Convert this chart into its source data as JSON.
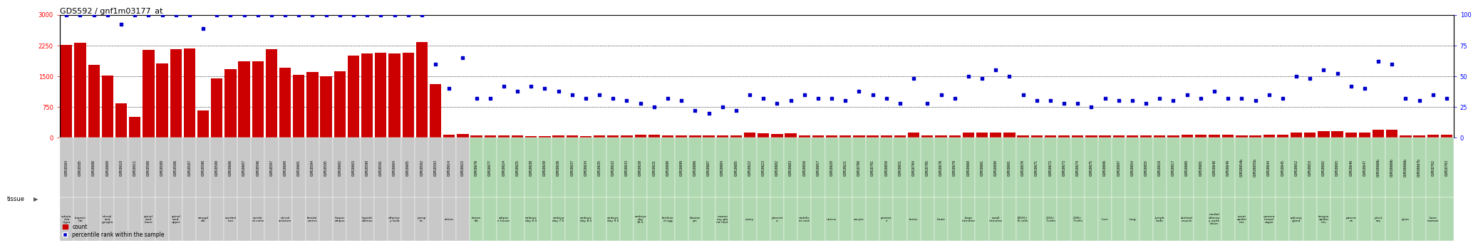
{
  "title": "GDS592 / gnf1m03177_at",
  "y_left_ticks": [
    0,
    750,
    1500,
    2250,
    3000
  ],
  "y_right_ticks": [
    0,
    25,
    50,
    75,
    100
  ],
  "bar_color": "#cc0000",
  "dot_color": "#0000cc",
  "bg_gray": "#c8c8c8",
  "bg_green": "#b0d8b0",
  "samples": [
    {
      "id": "GSM18584",
      "tissue": "substa\nntia\nnigra",
      "count": 2270,
      "pct": 100,
      "bg": "gray"
    },
    {
      "id": "GSM18585",
      "tissue": "trigemi\nnal",
      "count": 2310,
      "pct": 100,
      "bg": "gray"
    },
    {
      "id": "GSM18608",
      "tissue": "",
      "count": 1780,
      "pct": 100,
      "bg": "gray"
    },
    {
      "id": "GSM18609",
      "tissue": "dorsal\nroot\nganglia",
      "count": 1510,
      "pct": 100,
      "bg": "gray"
    },
    {
      "id": "GSM18610",
      "tissue": "",
      "count": 840,
      "pct": 92,
      "bg": "gray"
    },
    {
      "id": "GSM18611",
      "tissue": "",
      "count": 510,
      "pct": 100,
      "bg": "gray"
    },
    {
      "id": "GSM18588",
      "tissue": "spinal\ncord\nlower",
      "count": 2140,
      "pct": 100,
      "bg": "gray"
    },
    {
      "id": "GSM18589",
      "tissue": "",
      "count": 1810,
      "pct": 100,
      "bg": "gray"
    },
    {
      "id": "GSM18586",
      "tissue": "spinal\ncord\nupper",
      "count": 2160,
      "pct": 100,
      "bg": "gray"
    },
    {
      "id": "GSM18587",
      "tissue": "",
      "count": 2175,
      "pct": 100,
      "bg": "gray"
    },
    {
      "id": "GSM18598",
      "tissue": "amygd\nala",
      "count": 660,
      "pct": 89,
      "bg": "gray"
    },
    {
      "id": "GSM18599",
      "tissue": "",
      "count": 1450,
      "pct": 100,
      "bg": "gray"
    },
    {
      "id": "GSM18606",
      "tissue": "cerebel\nlum",
      "count": 1670,
      "pct": 100,
      "bg": "gray"
    },
    {
      "id": "GSM18607",
      "tissue": "",
      "count": 1870,
      "pct": 100,
      "bg": "gray"
    },
    {
      "id": "GSM18596",
      "tissue": "cerebr\nal corte",
      "count": 1870,
      "pct": 100,
      "bg": "gray"
    },
    {
      "id": "GSM18597",
      "tissue": "",
      "count": 2155,
      "pct": 100,
      "bg": "gray"
    },
    {
      "id": "GSM18600",
      "tissue": "dorsal\nstriatum",
      "count": 1700,
      "pct": 100,
      "bg": "gray"
    },
    {
      "id": "GSM18601",
      "tissue": "",
      "count": 1540,
      "pct": 100,
      "bg": "gray"
    },
    {
      "id": "GSM18594",
      "tissue": "frontal\ncortex",
      "count": 1595,
      "pct": 100,
      "bg": "gray"
    },
    {
      "id": "GSM18595",
      "tissue": "",
      "count": 1500,
      "pct": 100,
      "bg": "gray"
    },
    {
      "id": "GSM18602",
      "tissue": "hippoc\nampus",
      "count": 1620,
      "pct": 100,
      "bg": "gray"
    },
    {
      "id": "GSM18603",
      "tissue": "",
      "count": 2000,
      "pct": 100,
      "bg": "gray"
    },
    {
      "id": "GSM18590",
      "tissue": "hypoth\nalamus",
      "count": 2060,
      "pct": 100,
      "bg": "gray"
    },
    {
      "id": "GSM18591",
      "tissue": "",
      "count": 2070,
      "pct": 100,
      "bg": "gray"
    },
    {
      "id": "GSM18604",
      "tissue": "olfactor\ny bulb",
      "count": 2055,
      "pct": 100,
      "bg": "gray"
    },
    {
      "id": "GSM18605",
      "tissue": "",
      "count": 2065,
      "pct": 100,
      "bg": "gray"
    },
    {
      "id": "GSM18592",
      "tissue": "preop\ntic",
      "count": 2340,
      "pct": 100,
      "bg": "gray"
    },
    {
      "id": "GSM18593",
      "tissue": "",
      "count": 1300,
      "pct": 60,
      "bg": "gray"
    },
    {
      "id": "GSM18614",
      "tissue": "retina",
      "count": 80,
      "pct": 40,
      "bg": "gray"
    },
    {
      "id": "GSM18615",
      "tissue": "",
      "count": 90,
      "pct": 65,
      "bg": "gray"
    },
    {
      "id": "GSM18676",
      "tissue": "brown\nfat",
      "count": 60,
      "pct": 32,
      "bg": "green"
    },
    {
      "id": "GSM18677",
      "tissue": "",
      "count": 50,
      "pct": 32,
      "bg": "green"
    },
    {
      "id": "GSM18624",
      "tissue": "adipos\ne tissue",
      "count": 55,
      "pct": 42,
      "bg": "green"
    },
    {
      "id": "GSM18625",
      "tissue": "",
      "count": 60,
      "pct": 38,
      "bg": "green"
    },
    {
      "id": "GSM18638",
      "tissue": "embryo\nday 6.5",
      "count": 40,
      "pct": 42,
      "bg": "green"
    },
    {
      "id": "GSM18639",
      "tissue": "",
      "count": 40,
      "pct": 40,
      "bg": "green"
    },
    {
      "id": "GSM18636",
      "tissue": "embryo\nday 7.5",
      "count": 60,
      "pct": 38,
      "bg": "green"
    },
    {
      "id": "GSM18637",
      "tissue": "",
      "count": 60,
      "pct": 35,
      "bg": "green"
    },
    {
      "id": "GSM18634",
      "tissue": "embryo\nday 8.5",
      "count": 40,
      "pct": 32,
      "bg": "green"
    },
    {
      "id": "GSM18635",
      "tissue": "",
      "count": 50,
      "pct": 35,
      "bg": "green"
    },
    {
      "id": "GSM18632",
      "tissue": "embryo\nday 9.5",
      "count": 50,
      "pct": 32,
      "bg": "green"
    },
    {
      "id": "GSM18633",
      "tissue": "",
      "count": 50,
      "pct": 30,
      "bg": "green"
    },
    {
      "id": "GSM18630",
      "tissue": "embryo\nday\n10.5",
      "count": 70,
      "pct": 28,
      "bg": "green"
    },
    {
      "id": "GSM18631",
      "tissue": "",
      "count": 70,
      "pct": 25,
      "bg": "green"
    },
    {
      "id": "GSM18698",
      "tissue": "fertilize\nd egg",
      "count": 55,
      "pct": 32,
      "bg": "green"
    },
    {
      "id": "GSM18699",
      "tissue": "",
      "count": 55,
      "pct": 30,
      "bg": "green"
    },
    {
      "id": "GSM18686",
      "tissue": "blastoc\nyts",
      "count": 55,
      "pct": 22,
      "bg": "green"
    },
    {
      "id": "GSM18687",
      "tissue": "",
      "count": 55,
      "pct": 20,
      "bg": "green"
    },
    {
      "id": "GSM18684",
      "tissue": "mamm\nary gla\nnd (lact",
      "count": 55,
      "pct": 25,
      "bg": "green"
    },
    {
      "id": "GSM18685",
      "tissue": "",
      "count": 55,
      "pct": 22,
      "bg": "green"
    },
    {
      "id": "GSM18622",
      "tissue": "ovary",
      "count": 120,
      "pct": 35,
      "bg": "green"
    },
    {
      "id": "GSM18623",
      "tissue": "",
      "count": 100,
      "pct": 32,
      "bg": "green"
    },
    {
      "id": "GSM18682",
      "tissue": "placent\na",
      "count": 85,
      "pct": 28,
      "bg": "green"
    },
    {
      "id": "GSM18683",
      "tissue": "",
      "count": 100,
      "pct": 30,
      "bg": "green"
    },
    {
      "id": "GSM18656",
      "tissue": "umbilic\nal cord",
      "count": 60,
      "pct": 35,
      "bg": "green"
    },
    {
      "id": "GSM18657",
      "tissue": "",
      "count": 60,
      "pct": 32,
      "bg": "green"
    },
    {
      "id": "GSM18620",
      "tissue": "uterus",
      "count": 50,
      "pct": 32,
      "bg": "green"
    },
    {
      "id": "GSM18621",
      "tissue": "",
      "count": 50,
      "pct": 30,
      "bg": "green"
    },
    {
      "id": "GSM18700",
      "tissue": "oocyte",
      "count": 55,
      "pct": 38,
      "bg": "green"
    },
    {
      "id": "GSM18701",
      "tissue": "",
      "count": 60,
      "pct": 35,
      "bg": "green"
    },
    {
      "id": "GSM18650",
      "tissue": "prostat\ne",
      "count": 55,
      "pct": 32,
      "bg": "green"
    },
    {
      "id": "GSM18651",
      "tissue": "",
      "count": 55,
      "pct": 28,
      "bg": "green"
    },
    {
      "id": "GSM18704",
      "tissue": "testis",
      "count": 120,
      "pct": 48,
      "bg": "green"
    },
    {
      "id": "GSM18705",
      "tissue": "",
      "count": 60,
      "pct": 28,
      "bg": "green"
    },
    {
      "id": "GSM18678",
      "tissue": "heart",
      "count": 60,
      "pct": 35,
      "bg": "green"
    },
    {
      "id": "GSM18679",
      "tissue": "",
      "count": 60,
      "pct": 32,
      "bg": "green"
    },
    {
      "id": "GSM18660",
      "tissue": "large\nintestine",
      "count": 120,
      "pct": 50,
      "bg": "green"
    },
    {
      "id": "GSM18661",
      "tissue": "",
      "count": 120,
      "pct": 48,
      "bg": "green"
    },
    {
      "id": "GSM18690",
      "tissue": "small\nintestine",
      "count": 120,
      "pct": 55,
      "bg": "green"
    },
    {
      "id": "GSM18691",
      "tissue": "",
      "count": 120,
      "pct": 50,
      "bg": "green"
    },
    {
      "id": "GSM18670",
      "tissue": "B220+\nB cells",
      "count": 55,
      "pct": 35,
      "bg": "green"
    },
    {
      "id": "GSM18671",
      "tissue": "",
      "count": 55,
      "pct": 30,
      "bg": "green"
    },
    {
      "id": "GSM18672",
      "tissue": "CD4+\nT cells",
      "count": 55,
      "pct": 30,
      "bg": "green"
    },
    {
      "id": "GSM18673",
      "tissue": "",
      "count": 55,
      "pct": 28,
      "bg": "green"
    },
    {
      "id": "GSM18674",
      "tissue": "CD8+\nT cells",
      "count": 55,
      "pct": 28,
      "bg": "green"
    },
    {
      "id": "GSM18675",
      "tissue": "",
      "count": 55,
      "pct": 25,
      "bg": "green"
    },
    {
      "id": "GSM18696",
      "tissue": "liver",
      "count": 60,
      "pct": 32,
      "bg": "green"
    },
    {
      "id": "GSM18697",
      "tissue": "",
      "count": 60,
      "pct": 30,
      "bg": "green"
    },
    {
      "id": "GSM18654",
      "tissue": "lung",
      "count": 60,
      "pct": 30,
      "bg": "green"
    },
    {
      "id": "GSM18655",
      "tissue": "",
      "count": 60,
      "pct": 28,
      "bg": "green"
    },
    {
      "id": "GSM18616",
      "tissue": "lymph\nnode",
      "count": 60,
      "pct": 32,
      "bg": "green"
    },
    {
      "id": "GSM18617",
      "tissue": "",
      "count": 60,
      "pct": 30,
      "bg": "green"
    },
    {
      "id": "GSM18680",
      "tissue": "skeletal\nmuscle",
      "count": 65,
      "pct": 35,
      "bg": "green"
    },
    {
      "id": "GSM18681",
      "tissue": "",
      "count": 65,
      "pct": 32,
      "bg": "green"
    },
    {
      "id": "GSM18648",
      "tissue": "medial\nolfactor\ny epith\nelium",
      "count": 65,
      "pct": 38,
      "bg": "green"
    },
    {
      "id": "GSM18649",
      "tissue": "",
      "count": 65,
      "pct": 32,
      "bg": "green"
    },
    {
      "id": "GSM18654b",
      "tissue": "snout\nepider\nmis",
      "count": 60,
      "pct": 32,
      "bg": "green"
    },
    {
      "id": "GSM18655b",
      "tissue": "",
      "count": 60,
      "pct": 30,
      "bg": "green"
    },
    {
      "id": "GSM18644",
      "tissue": "vomera\nlinasal\norgan",
      "count": 65,
      "pct": 35,
      "bg": "green"
    },
    {
      "id": "GSM18645",
      "tissue": "",
      "count": 65,
      "pct": 32,
      "bg": "green"
    },
    {
      "id": "GSM18652",
      "tissue": "salivary\ngland",
      "count": 130,
      "pct": 50,
      "bg": "green"
    },
    {
      "id": "GSM18653",
      "tissue": "",
      "count": 130,
      "pct": 48,
      "bg": "green"
    },
    {
      "id": "GSM18692",
      "tissue": "tongue\nepider\nmis",
      "count": 155,
      "pct": 55,
      "bg": "green"
    },
    {
      "id": "GSM18693",
      "tissue": "",
      "count": 155,
      "pct": 52,
      "bg": "green"
    },
    {
      "id": "GSM18646",
      "tissue": "pancre\nas",
      "count": 120,
      "pct": 42,
      "bg": "green"
    },
    {
      "id": "GSM18647",
      "tissue": "",
      "count": 120,
      "pct": 40,
      "bg": "green"
    },
    {
      "id": "GSM18668b",
      "tissue": "pituit\nary",
      "count": 200,
      "pct": 62,
      "bg": "green"
    },
    {
      "id": "GSM18669b",
      "tissue": "",
      "count": 200,
      "pct": 60,
      "bg": "green"
    },
    {
      "id": "GSM18666b",
      "tissue": "gluts",
      "count": 60,
      "pct": 32,
      "bg": "green"
    },
    {
      "id": "GSM18667b",
      "tissue": "",
      "count": 60,
      "pct": 30,
      "bg": "green"
    },
    {
      "id": "GSM18702",
      "tissue": "bone\nmarrow",
      "count": 80,
      "pct": 35,
      "bg": "green"
    },
    {
      "id": "GSM18703",
      "tissue": "",
      "count": 80,
      "pct": 32,
      "bg": "green"
    }
  ]
}
